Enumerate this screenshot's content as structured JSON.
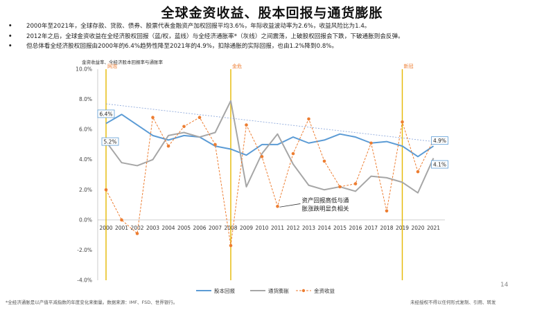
{
  "title": "全球金资收益、股本回报与通货膨胀",
  "bullets": [
    "2000年至2021年，全球存款、贷款、债券、股票代表金融资产加权回报平均3.6%，年际收益波动率为2.6%，收益风险比为1.4。",
    "2012年之后，全球金资收益在全经济股权回报（蓝/权，蓝线）与全经济通胀率*（灰线）之间震荡，上破股权回报会下跌，下破通胀则会反弹。",
    "但总体看全经济股权回报由2000年的6.4%趋势性降至2021年的4.9%，扣除通胀的实际回报，也由1.2%降到0.8%。"
  ],
  "chart_data": {
    "type": "line",
    "title": "金资收益率、全经济股本回报率与通胀率",
    "x": [
      "2000",
      "2001",
      "2002",
      "2003",
      "2004",
      "2005",
      "2006",
      "2007",
      "2008",
      "2009",
      "2010",
      "2011",
      "2012",
      "2013",
      "2014",
      "2015",
      "2016",
      "2017",
      "2018",
      "2019",
      "2020",
      "2021"
    ],
    "ylim": [
      -4.0,
      10.0
    ],
    "yticks": [
      "-4.0%",
      "-2.0%",
      "0.0%",
      "2.0%",
      "4.0%",
      "6.0%",
      "8.0%",
      "10.0%"
    ],
    "series": [
      {
        "name": "股本回报",
        "color": "#5b9bd5",
        "style": "solid",
        "values": [
          6.4,
          7.0,
          6.3,
          5.6,
          5.3,
          5.6,
          5.5,
          4.9,
          4.7,
          4.3,
          5.0,
          5.0,
          5.5,
          5.1,
          5.3,
          5.7,
          5.5,
          5.1,
          5.2,
          4.9,
          4.2,
          4.9
        ]
      },
      {
        "name": "通货膨胀",
        "color": "#a6a6a6",
        "style": "solid",
        "values": [
          5.2,
          3.8,
          3.6,
          4.0,
          5.6,
          5.8,
          5.5,
          5.8,
          7.9,
          2.2,
          4.4,
          5.7,
          3.7,
          2.3,
          2.0,
          2.2,
          1.9,
          2.9,
          2.8,
          2.5,
          1.8,
          4.1
        ]
      },
      {
        "name": "金资收益",
        "color": "#ed7d31",
        "style": "dashed-markers",
        "values": [
          2.0,
          0.0,
          -0.9,
          6.8,
          4.9,
          6.2,
          6.8,
          5.0,
          -1.7,
          6.3,
          4.2,
          0.9,
          4.4,
          6.7,
          3.9,
          2.2,
          2.4,
          5.1,
          0.6,
          6.5,
          3.2,
          5.3
        ]
      }
    ],
    "trendline": {
      "color": "#8faadc",
      "from": {
        "x": "2000",
        "y": 7.7
      },
      "to": {
        "x": "2021",
        "y": 5.2
      }
    },
    "event_lines": [
      {
        "x": "2000",
        "label": "网泡",
        "color": "#e5b800"
      },
      {
        "x": "2008",
        "label": "金危",
        "color": "#e5b800"
      },
      {
        "x": "2019",
        "label": "新冠",
        "color": "#e5b800"
      }
    ],
    "value_labels": [
      {
        "text": "6.4%",
        "x": "2000",
        "y": 6.4
      },
      {
        "text": "5.2%",
        "x": "2000",
        "y": 5.2
      },
      {
        "text": "4.9%",
        "x": "2021",
        "y": 4.9
      },
      {
        "text": "4.1%",
        "x": "2021",
        "y": 4.1
      }
    ],
    "annotation": {
      "lines": [
        "资产回报高低与通",
        "胀涨跌明显负相关"
      ],
      "x": "2013",
      "y": 0.8,
      "arrow_to": {
        "x": "2011",
        "y": 0.9
      }
    },
    "legend_position": "bottom",
    "grid": false
  },
  "axis_title": "金资收益率、全经济股本回报率与通胀率",
  "footer": {
    "left": "*全经济通胀是以产值平减指数的年度变化来衡量。数据来源：IMF、FSD、世界银行。",
    "right": "未经授权不得以任何形式复制、引用、转发"
  },
  "page_number": "14"
}
